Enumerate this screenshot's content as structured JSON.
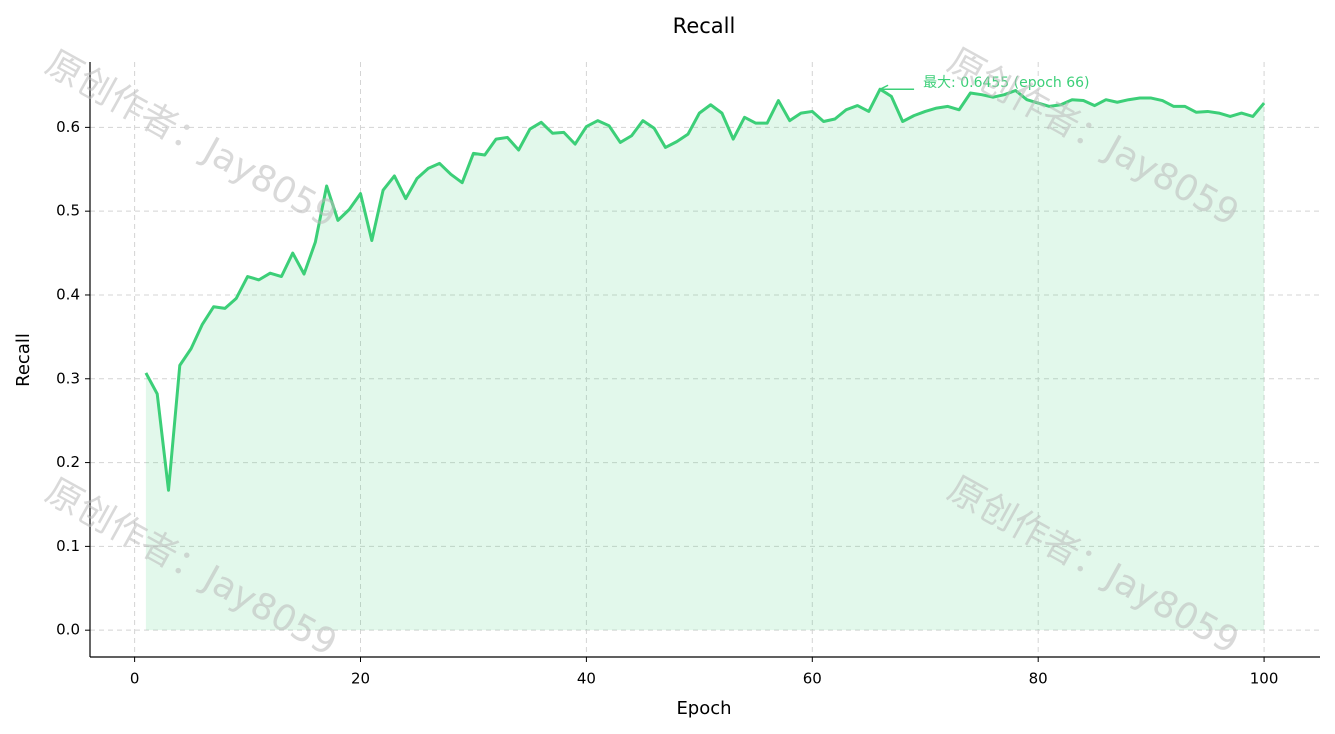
{
  "chart_data": {
    "type": "line",
    "title": "Recall",
    "xlabel": "Epoch",
    "ylabel": "Recall",
    "watermark": "原创作者：Jay8059",
    "x": [
      1,
      2,
      3,
      4,
      5,
      6,
      7,
      8,
      9,
      10,
      11,
      12,
      13,
      14,
      15,
      16,
      17,
      18,
      19,
      20,
      21,
      22,
      23,
      24,
      25,
      26,
      27,
      28,
      29,
      30,
      31,
      32,
      33,
      34,
      35,
      36,
      37,
      38,
      39,
      40,
      41,
      42,
      43,
      44,
      45,
      46,
      47,
      48,
      49,
      50,
      51,
      52,
      53,
      54,
      55,
      56,
      57,
      58,
      59,
      60,
      61,
      62,
      63,
      64,
      65,
      66,
      67,
      68,
      69,
      70,
      71,
      72,
      73,
      74,
      75,
      76,
      77,
      78,
      79,
      80,
      81,
      82,
      83,
      84,
      85,
      86,
      87,
      88,
      89,
      90,
      91,
      92,
      93,
      94,
      95,
      96,
      97,
      98,
      99,
      100
    ],
    "series": [
      {
        "name": "Recall",
        "color": "#3ccf78",
        "fill": true,
        "values": [
          0.307,
          0.282,
          0.167,
          0.316,
          0.336,
          0.365,
          0.386,
          0.384,
          0.396,
          0.422,
          0.418,
          0.426,
          0.422,
          0.45,
          0.425,
          0.463,
          0.53,
          0.489,
          0.502,
          0.521,
          0.465,
          0.525,
          0.542,
          0.515,
          0.539,
          0.551,
          0.557,
          0.544,
          0.534,
          0.569,
          0.567,
          0.586,
          0.588,
          0.573,
          0.598,
          0.606,
          0.593,
          0.594,
          0.58,
          0.601,
          0.608,
          0.602,
          0.582,
          0.59,
          0.608,
          0.599,
          0.576,
          0.583,
          0.592,
          0.617,
          0.627,
          0.617,
          0.586,
          0.612,
          0.605,
          0.605,
          0.632,
          0.608,
          0.617,
          0.619,
          0.607,
          0.61,
          0.621,
          0.626,
          0.619,
          0.6455,
          0.637,
          0.607,
          0.614,
          0.619,
          0.623,
          0.625,
          0.621,
          0.641,
          0.639,
          0.636,
          0.639,
          0.644,
          0.633,
          0.629,
          0.625,
          0.627,
          0.633,
          0.632,
          0.626,
          0.633,
          0.63,
          0.633,
          0.635,
          0.635,
          0.632,
          0.625,
          0.625,
          0.618,
          0.619,
          0.617,
          0.613,
          0.617,
          0.613,
          0.629
        ]
      }
    ],
    "annotation": {
      "text": "最大: 0.6455 (epoch 66)",
      "series": 0,
      "index": 65
    },
    "xlim": [
      -3.95,
      104.95
    ],
    "ylim": [
      -0.032,
      0.678
    ],
    "xticks": [
      0,
      20,
      40,
      60,
      80,
      100
    ],
    "yticks": [
      {
        "value": 0,
        "label": "0.0"
      },
      0.1,
      0.2,
      0.3,
      0.4,
      0.5,
      0.6
    ],
    "grid": true
  }
}
